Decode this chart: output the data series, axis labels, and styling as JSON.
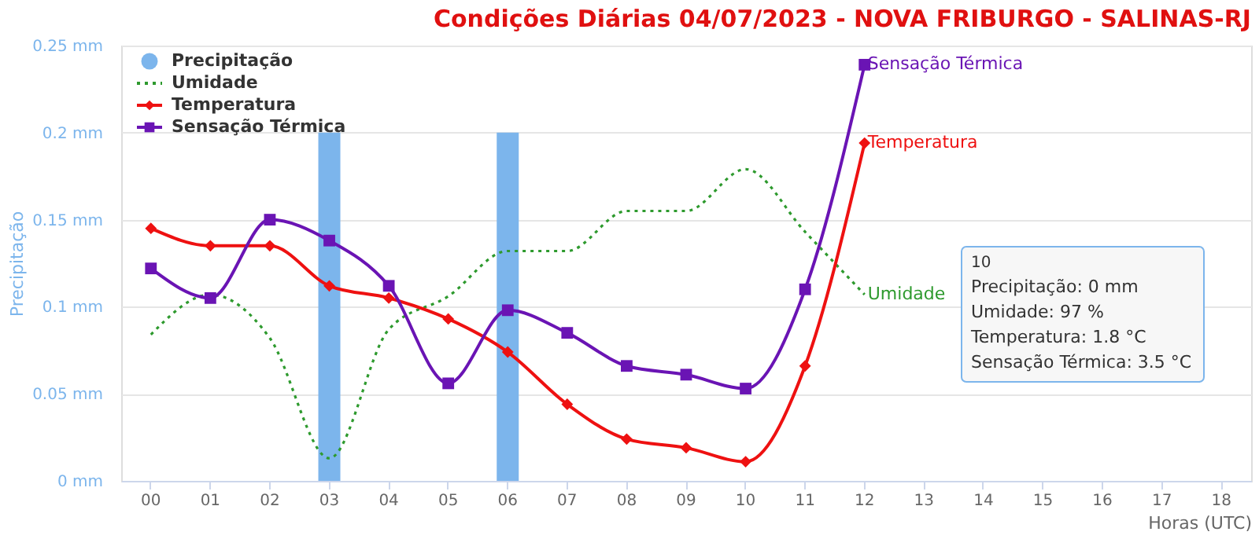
{
  "chart_data": {
    "type": "line",
    "title": "Condições Diárias 04/07/2023 - NOVA FRIBURGO - SALINAS-RJ",
    "xlabel": "Horas (UTC)",
    "ylabel": "Precipitação",
    "categories": [
      "00",
      "01",
      "02",
      "03",
      "04",
      "05",
      "06",
      "07",
      "08",
      "09",
      "10",
      "11",
      "12",
      "13",
      "14",
      "15",
      "16",
      "17",
      "18"
    ],
    "ylim": [
      0,
      0.25
    ],
    "yticks": [
      {
        "value": 0,
        "label": "0 mm"
      },
      {
        "value": 0.05,
        "label": "0.05 mm"
      },
      {
        "value": 0.1,
        "label": "0.1 mm"
      },
      {
        "value": 0.15,
        "label": "0.15 mm"
      },
      {
        "value": 0.2,
        "label": "0.2 mm"
      },
      {
        "value": 0.25,
        "label": "0.25 mm"
      }
    ],
    "grid": "y",
    "legend": "top left",
    "series": [
      {
        "name": "Precipitação",
        "type": "bar",
        "color": "#7cb5ec",
        "values": [
          0,
          0,
          0,
          0.2,
          0,
          0,
          0.2,
          0,
          0,
          0,
          0,
          0,
          0,
          null,
          null,
          null,
          null,
          null,
          null
        ]
      },
      {
        "name": "Umidade",
        "color": "#2e9a2e",
        "line_style": "dotted",
        "marker": "none",
        "values": [
          0.084,
          0.107,
          0.082,
          0.013,
          0.087,
          0.106,
          0.132,
          0.132,
          0.155,
          0.155,
          0.179,
          0.143,
          0.107,
          null,
          null,
          null,
          null,
          null,
          null
        ]
      },
      {
        "name": "Temperatura",
        "color": "#ee1111",
        "line_style": "solid",
        "marker": "diamond",
        "values": [
          0.145,
          0.135,
          0.135,
          0.112,
          0.105,
          0.093,
          0.074,
          0.044,
          0.024,
          0.019,
          0.011,
          0.066,
          0.194,
          null,
          null,
          null,
          null,
          null,
          null
        ]
      },
      {
        "name": "Sensação Térmica",
        "color": "#6a14b4",
        "line_style": "solid",
        "marker": "square",
        "values": [
          0.122,
          0.105,
          0.15,
          0.138,
          0.112,
          0.056,
          0.098,
          0.085,
          0.066,
          0.061,
          0.053,
          0.11,
          0.239,
          null,
          null,
          null,
          null,
          null,
          null
        ]
      }
    ],
    "annotations": [
      "10",
      "Precipitação: 0 mm",
      "Umidade: 97 %",
      "Temperatura: 1.8 °C",
      "Sensação Térmica: 3.5 °C"
    ]
  }
}
